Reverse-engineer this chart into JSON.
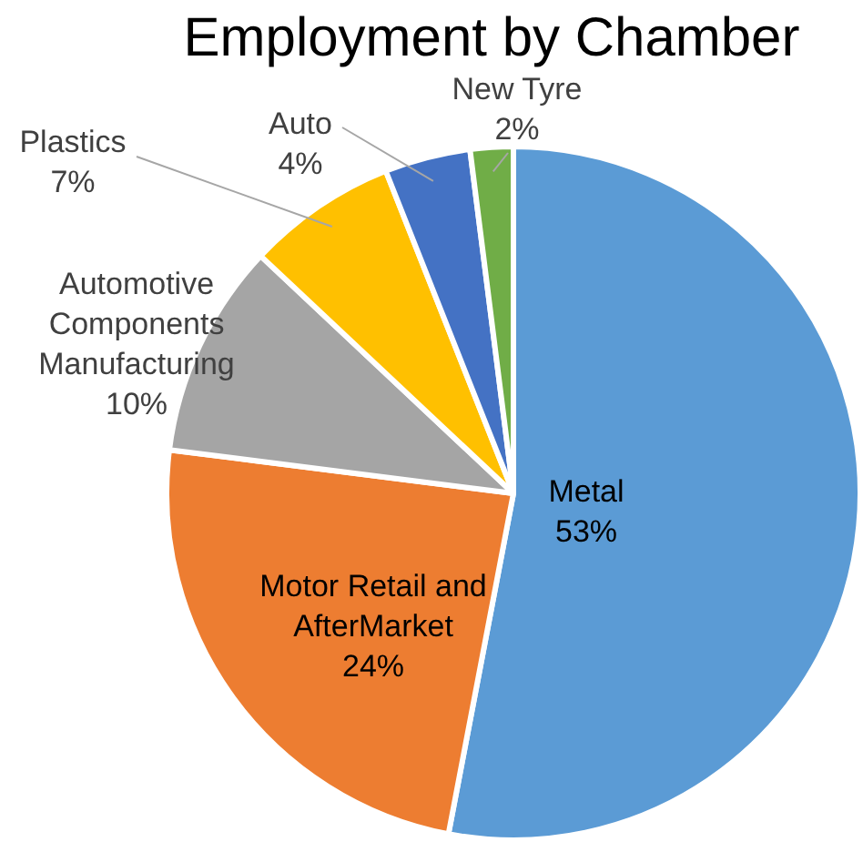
{
  "chart_data": {
    "type": "pie",
    "title": "Employment by Chamber",
    "categories": [
      "Metal",
      "Motor Retail and AfterMarket",
      "Automotive Components Manufacturing",
      "Plastics",
      "Auto",
      "New Tyre"
    ],
    "values": [
      53,
      24,
      10,
      7,
      4,
      2
    ],
    "value_labels": [
      "53%",
      "24%",
      "10%",
      "7%",
      "4%",
      "2%"
    ],
    "colors": [
      "#5b9bd5",
      "#ed7d31",
      "#a5a5a5",
      "#ffc000",
      "#4472c4",
      "#70ad47"
    ],
    "legend": false
  }
}
